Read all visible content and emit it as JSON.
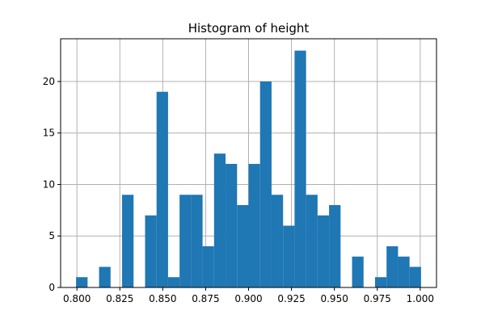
{
  "chart_data": {
    "type": "bar",
    "title": "Histogram of height",
    "xlabel": "",
    "ylabel": "",
    "xlim": [
      0.7905,
      1.0095
    ],
    "ylim": [
      0,
      24.15
    ],
    "x_ticks": [
      0.8,
      0.825,
      0.85,
      0.875,
      0.9,
      0.925,
      0.95,
      0.975,
      1.0
    ],
    "x_tick_labels": [
      "0.800",
      "0.825",
      "0.850",
      "0.875",
      "0.900",
      "0.925",
      "0.950",
      "0.975",
      "1.000"
    ],
    "y_ticks": [
      0,
      5,
      10,
      15,
      20
    ],
    "y_tick_labels": [
      "0",
      "5",
      "10",
      "15",
      "20"
    ],
    "grid": true,
    "bar_color": "#1f77b4",
    "bin_edges": [
      0.7995,
      0.8062,
      0.8129,
      0.8196,
      0.8263,
      0.833,
      0.8397,
      0.8464,
      0.8531,
      0.8598,
      0.8665,
      0.8732,
      0.8799,
      0.8866,
      0.8933,
      0.9,
      0.9067,
      0.9134,
      0.9201,
      0.9268,
      0.9335,
      0.9402,
      0.9469,
      0.9536,
      0.9603,
      0.967,
      0.9737,
      0.9804,
      0.9871,
      0.9938,
      1.0005
    ],
    "counts": [
      1,
      0,
      2,
      0,
      9,
      0,
      7,
      19,
      1,
      9,
      9,
      4,
      13,
      12,
      8,
      12,
      20,
      9,
      6,
      23,
      9,
      7,
      8,
      0,
      3,
      0,
      1,
      4,
      3,
      2
    ]
  }
}
